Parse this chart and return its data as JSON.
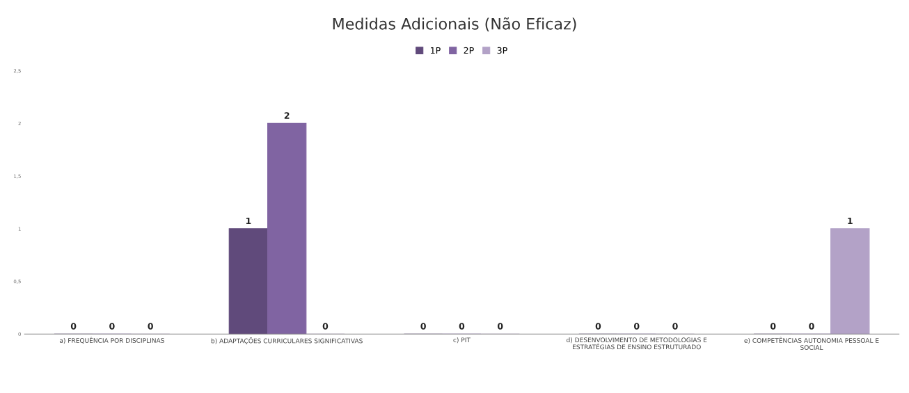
{
  "chart_data": {
    "type": "bar",
    "title": "Medidas Adicionais (Não Eficaz)",
    "categories": [
      "a) FREQUÊNCIA POR DISCIPLINAS",
      "b) ADAPTAÇÕES CURRICULARES SIGNIFICATIVAS",
      "c) PIT",
      "d) DESENVOLVIMENTO DE METODOLOGIAS E\nESTRATÉGIAS DE ENSINO ESTRUTURADO",
      "e) COMPETÊNCIAS AUTONOMIA PESSOAL E\nSOCIAL"
    ],
    "series": [
      {
        "name": "1P",
        "color": "#604a7b",
        "values": [
          0,
          1,
          0,
          0,
          0
        ]
      },
      {
        "name": "2P",
        "color": "#8064a2",
        "values": [
          0,
          2,
          0,
          0,
          0
        ]
      },
      {
        "name": "3P",
        "color": "#b3a2c7",
        "values": [
          0,
          0,
          0,
          0,
          1
        ]
      }
    ],
    "ylim": [
      0,
      2.5
    ],
    "yticks": [
      0,
      {
        "value": 0.5,
        "label": "0,5"
      },
      1,
      {
        "value": 1.5,
        "label": "1,5"
      },
      2,
      {
        "value": 2.5,
        "label": "2,5"
      }
    ],
    "data_labels": true,
    "legend": "top",
    "grid": false
  }
}
